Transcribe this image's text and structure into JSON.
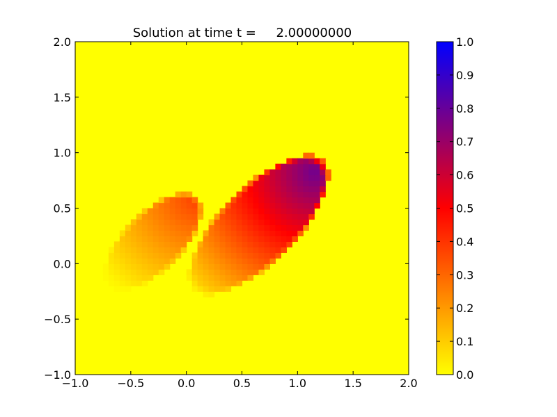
{
  "chart_data": {
    "type": "heatmap",
    "title": "Solution at time t =     2.00000000",
    "xlabel": "",
    "ylabel": "",
    "xlim": [
      -1.0,
      2.0
    ],
    "ylim": [
      -1.0,
      2.0
    ],
    "x_ticks": [
      "−1.0",
      "−0.5",
      "0.0",
      "0.5",
      "1.0",
      "1.5",
      "2.0"
    ],
    "y_ticks": [
      "−1.0",
      "−0.5",
      "0.0",
      "0.5",
      "1.0",
      "1.5",
      "2.0"
    ],
    "colorbar": {
      "range": [
        0.0,
        1.0
      ],
      "ticks": [
        "0.0",
        "0.1",
        "0.2",
        "0.3",
        "0.4",
        "0.5",
        "0.6",
        "0.7",
        "0.8",
        "0.9",
        "1.0"
      ],
      "colormap": [
        "#ffff00",
        "#ff8000",
        "#ff0000",
        "#800080",
        "#0000ff"
      ]
    },
    "background_value": 0.0,
    "blobs": [
      {
        "center": [
          -0.3,
          0.2
        ],
        "semi_axes": [
          0.26,
          0.56
        ],
        "rotation_deg": 45,
        "max_value": 0.38,
        "peak_corner": [
          0.1,
          0.6
        ]
      },
      {
        "center": [
          0.65,
          0.35
        ],
        "semi_axes": [
          0.34,
          0.82
        ],
        "rotation_deg": 45,
        "max_value": 0.78,
        "peak_corner": [
          1.15,
          0.82
        ]
      }
    ]
  }
}
